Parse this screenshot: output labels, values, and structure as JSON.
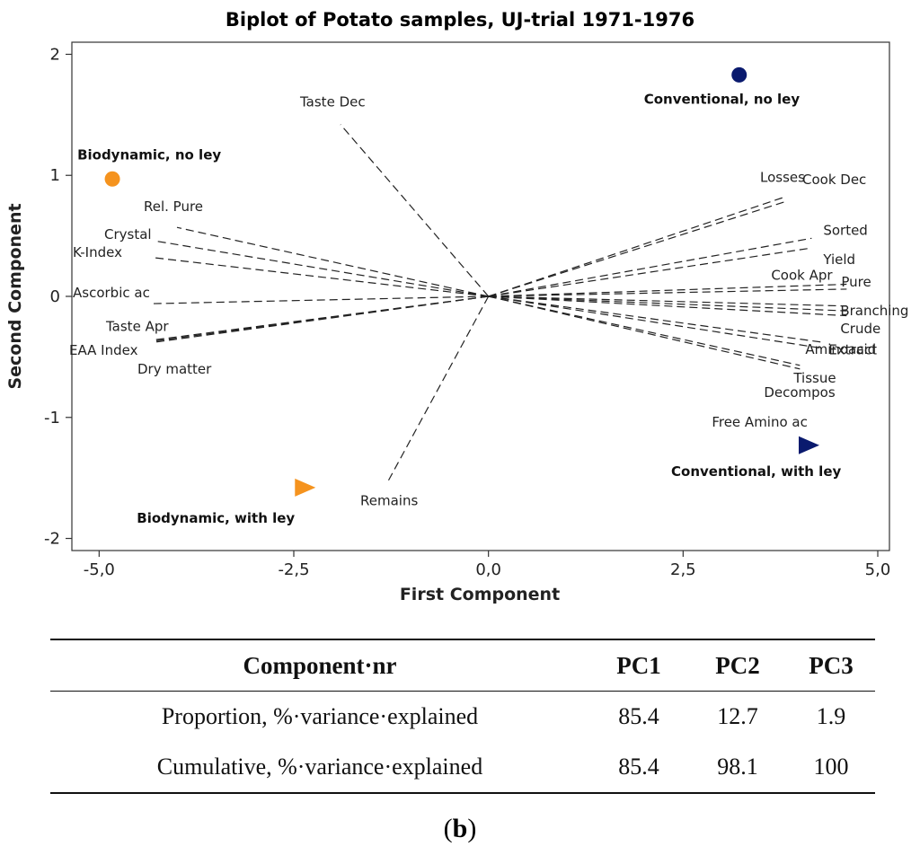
{
  "chart_data": {
    "type": "scatter",
    "title": "Biplot of Potato samples, UJ-trial 1971-1976",
    "xlabel": "First Component",
    "ylabel": "Second Component",
    "xlim": [
      -5.35,
      5.15
    ],
    "ylim": [
      -2.1,
      2.1
    ],
    "x_ticks": [
      -5.0,
      -2.5,
      0.0,
      2.5,
      5.0
    ],
    "x_tick_labels": [
      "-5,0",
      "-2,5",
      "0,0",
      "2,5",
      "5,0"
    ],
    "y_ticks": [
      2,
      1,
      0,
      -1,
      -2
    ],
    "y_tick_labels": [
      "2",
      "1",
      "0",
      "-1",
      "-2"
    ],
    "groups": [
      {
        "name": "Conventional, no ley",
        "x": 3.22,
        "y": 1.83,
        "marker": "circle",
        "color": "#0a1a6e"
      },
      {
        "name": "Biodynamic, no ley",
        "x": -4.83,
        "y": 0.97,
        "marker": "circle",
        "color": "#f5931e"
      },
      {
        "name": "Conventional, with ley",
        "x": 4.1,
        "y": -1.23,
        "marker": "triangle-right",
        "color": "#0a1a6e"
      },
      {
        "name": "Biodynamic, with ley",
        "x": -2.37,
        "y": -1.58,
        "marker": "triangle-right",
        "color": "#f5931e"
      }
    ],
    "variables": [
      {
        "name": "Taste Dec",
        "x": -1.9,
        "y": 1.42
      },
      {
        "name": "Remains",
        "x": -1.3,
        "y": -1.54
      },
      {
        "name": "Rel. Pure",
        "x": -4.0,
        "y": 0.57
      },
      {
        "name": "Crystal",
        "x": -4.3,
        "y": 0.46
      },
      {
        "name": "K-Index",
        "x": -4.3,
        "y": 0.32
      },
      {
        "name": "Ascorbic ac",
        "x": -4.3,
        "y": -0.06
      },
      {
        "name": "Taste Apr",
        "x": -4.3,
        "y": -0.36
      },
      {
        "name": "EAA Index",
        "x": -4.3,
        "y": -0.37
      },
      {
        "name": "Dry matter",
        "x": -4.3,
        "y": -0.38
      },
      {
        "name": "Losses",
        "x": 3.8,
        "y": 0.82
      },
      {
        "name": "Cook Dec",
        "x": 3.8,
        "y": 0.78
      },
      {
        "name": "Sorted",
        "x": 4.15,
        "y": 0.48
      },
      {
        "name": "Yield",
        "x": 4.15,
        "y": 0.4
      },
      {
        "name": "Cook Apr",
        "x": 4.6,
        "y": 0.1
      },
      {
        "name": "Pure",
        "x": 4.6,
        "y": 0.06
      },
      {
        "name": "Branching",
        "x": 4.6,
        "y": -0.08
      },
      {
        "name": "Crude",
        "x": 4.6,
        "y": -0.12
      },
      {
        "name": "Extract",
        "x": 4.6,
        "y": -0.16
      },
      {
        "name": "Aminoacid",
        "x": 4.3,
        "y": -0.38
      },
      {
        "name": "Tissue",
        "x": 4.3,
        "y": -0.43
      },
      {
        "name": "Decompos",
        "x": 4.0,
        "y": -0.57
      },
      {
        "name": "Free Amino ac",
        "x": 4.0,
        "y": -0.6
      }
    ]
  },
  "variance_table": {
    "header": {
      "label": "Component·nr",
      "pc1": "PC1",
      "pc2": "PC2",
      "pc3": "PC3"
    },
    "rows": [
      {
        "label": "Proportion, %·variance·explained",
        "pc1": "85.4",
        "pc2": "12.7",
        "pc3": "1.9"
      },
      {
        "label": "Cumulative, %·variance·explained",
        "pc1": "85.4",
        "pc2": "98.1",
        "pc3": "100"
      }
    ]
  },
  "caption": {
    "open": "(",
    "letter": "b",
    "close": ")"
  }
}
